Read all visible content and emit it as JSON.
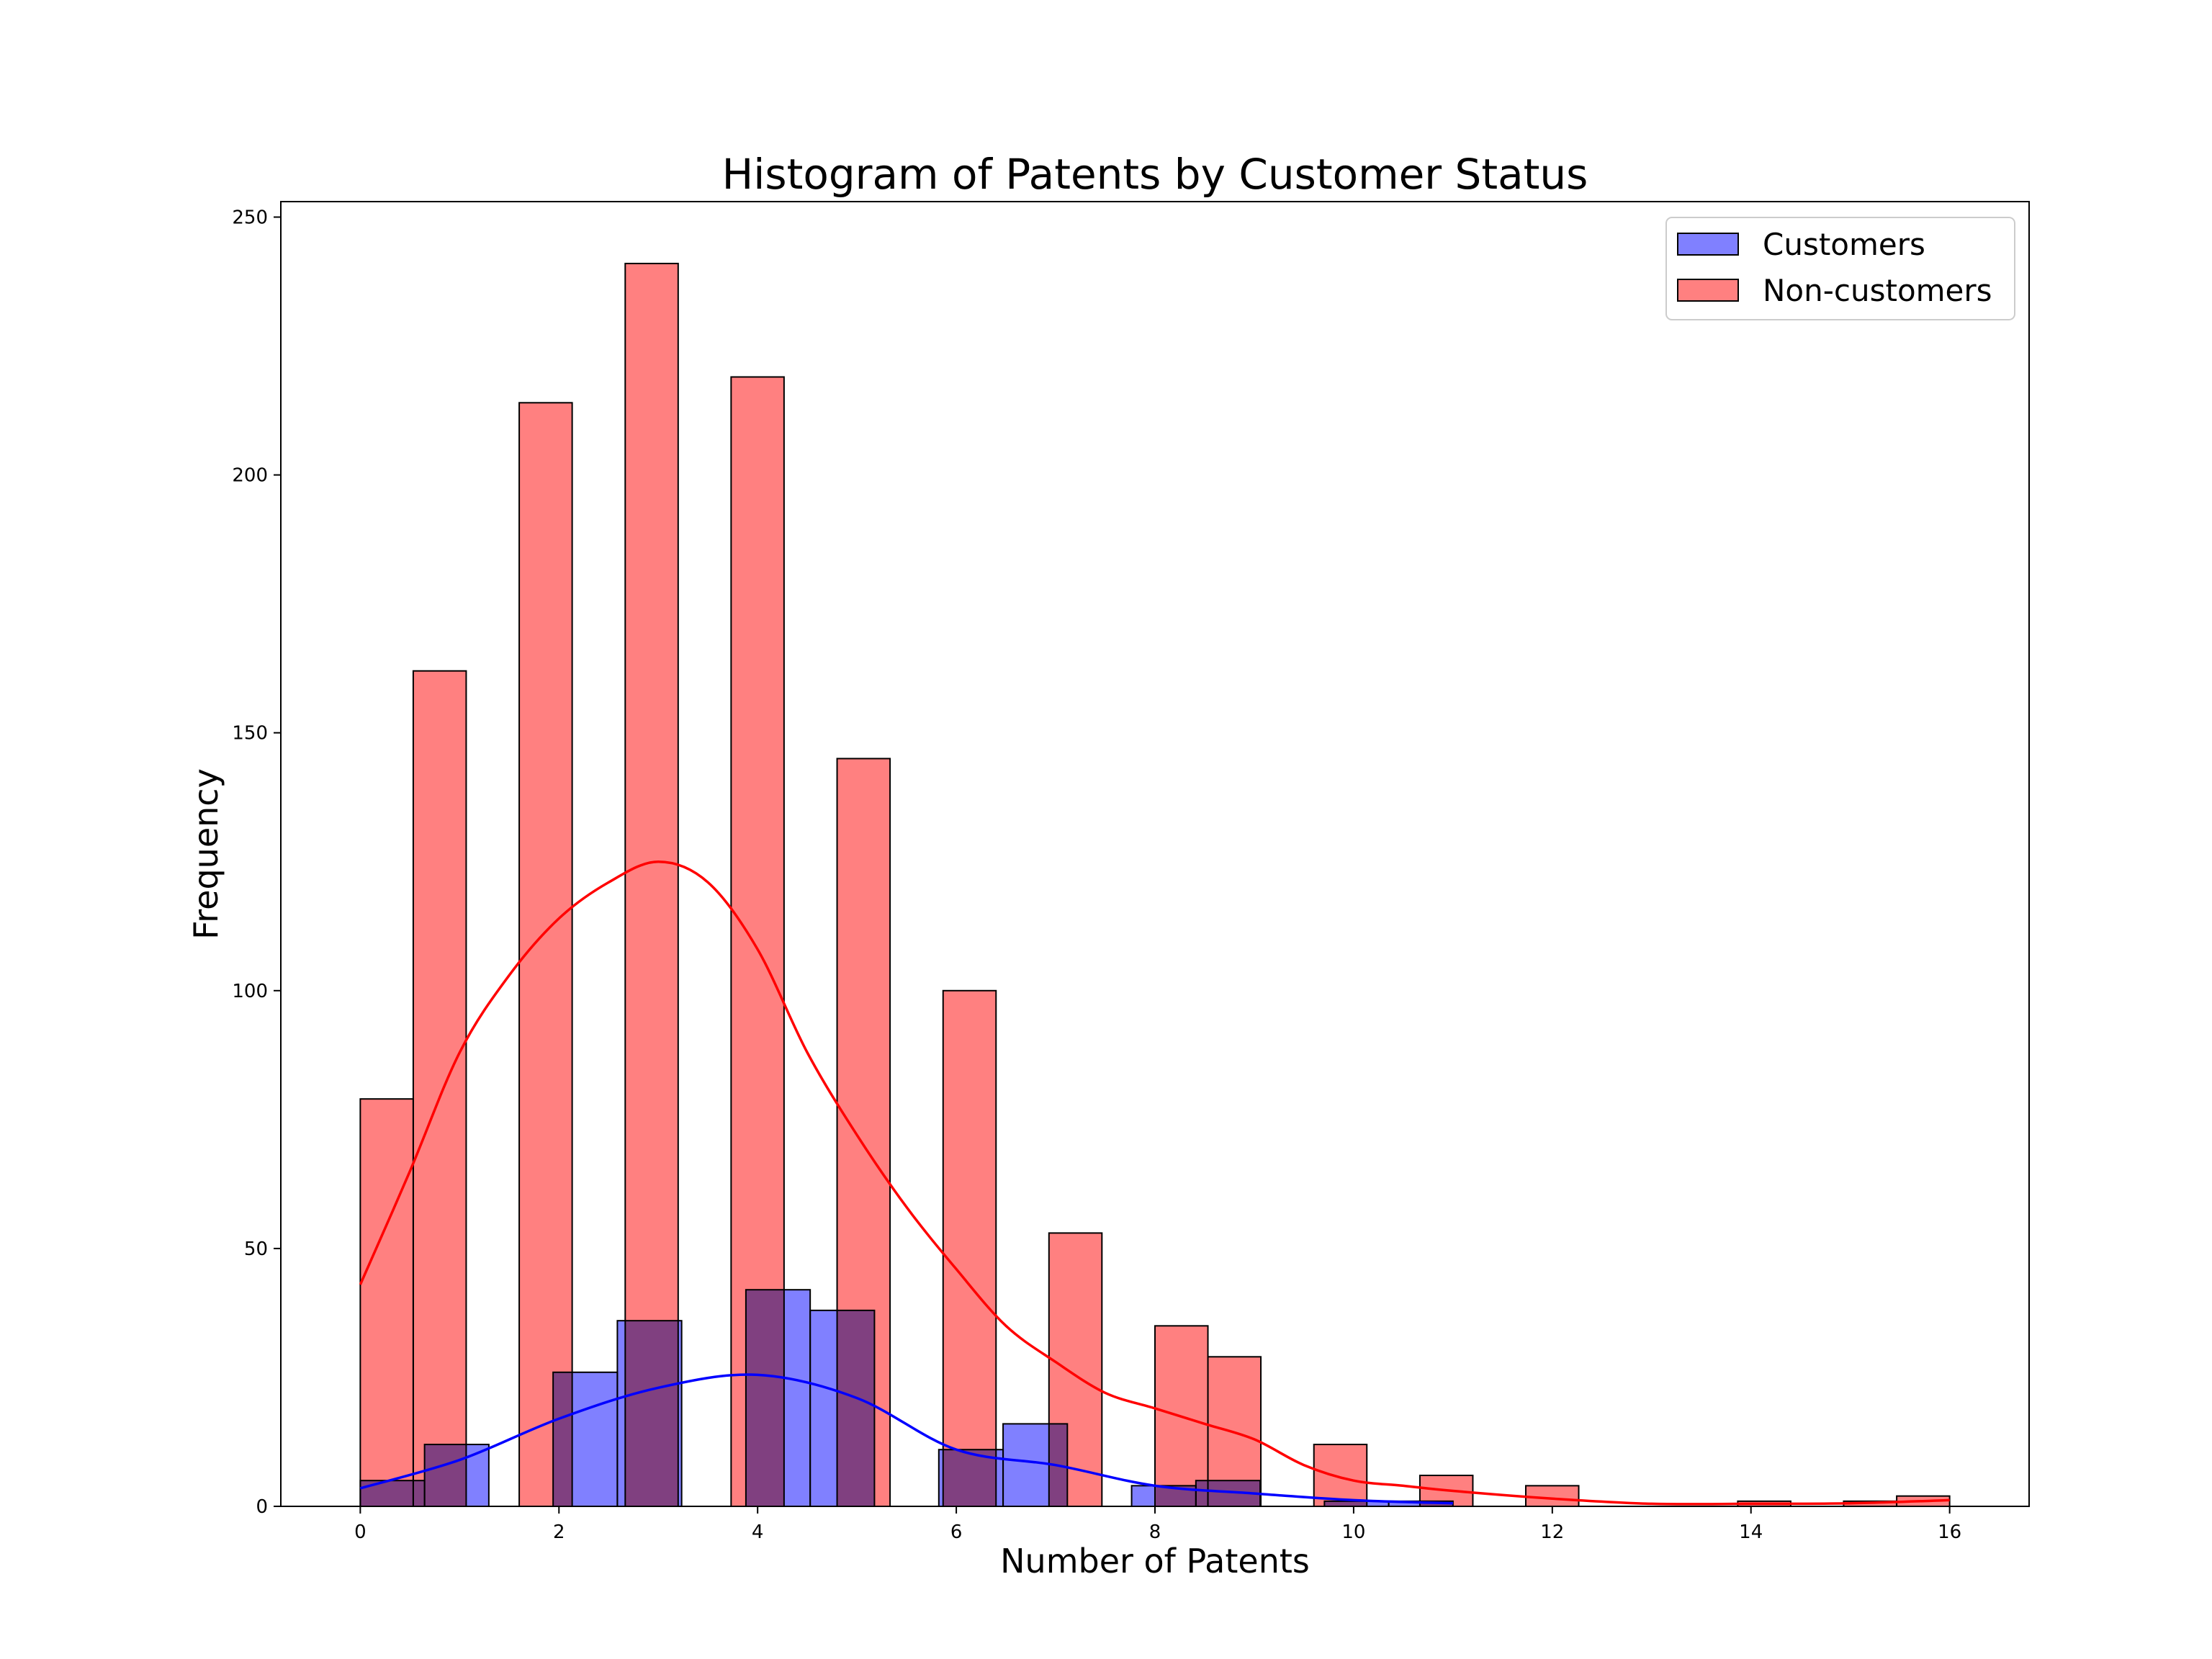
{
  "chart_data": {
    "type": "bar",
    "title": "Histogram of Patents by Customer Status",
    "xlabel": "Number of Patents",
    "ylabel": "Frequency",
    "xlim": [
      -0.8,
      16.8
    ],
    "ylim": [
      0,
      253
    ],
    "xticks": [
      0,
      2,
      4,
      6,
      8,
      10,
      12,
      14,
      16
    ],
    "yticks": [
      0,
      50,
      100,
      150,
      200,
      250
    ],
    "grid": false,
    "legend_position": "top-right",
    "series": [
      {
        "name": "Customers",
        "color": "#8080ff",
        "kde_color": "#0000ff",
        "bin_width": 0.647,
        "bins": [
          {
            "x0": 0.0,
            "value": 5
          },
          {
            "x0": 0.647,
            "value": 12
          },
          {
            "x0": 1.294,
            "value": 0
          },
          {
            "x0": 1.941,
            "value": 26
          },
          {
            "x0": 2.588,
            "value": 36
          },
          {
            "x0": 3.235,
            "value": 0
          },
          {
            "x0": 3.882,
            "value": 42
          },
          {
            "x0": 4.529,
            "value": 38
          },
          {
            "x0": 5.176,
            "value": 0
          },
          {
            "x0": 5.824,
            "value": 11
          },
          {
            "x0": 6.471,
            "value": 16
          },
          {
            "x0": 7.118,
            "value": 0
          },
          {
            "x0": 7.765,
            "value": 4
          },
          {
            "x0": 8.412,
            "value": 5
          },
          {
            "x0": 9.059,
            "value": 0
          },
          {
            "x0": 9.706,
            "value": 1
          },
          {
            "x0": 10.353,
            "value": 1
          }
        ],
        "kde": [
          [
            0,
            3.5
          ],
          [
            1,
            9
          ],
          [
            2,
            17
          ],
          [
            3,
            23
          ],
          [
            4,
            25.5
          ],
          [
            5,
            21
          ],
          [
            6,
            11
          ],
          [
            7,
            8
          ],
          [
            8,
            4
          ],
          [
            9,
            2.5
          ],
          [
            10,
            1.2
          ],
          [
            11,
            0.6
          ]
        ]
      },
      {
        "name": "Non-customers",
        "color": "#ff8080",
        "kde_color": "#ff0000",
        "bin_width": 0.533,
        "bins": [
          {
            "x0": 0.0,
            "value": 79
          },
          {
            "x0": 0.533,
            "value": 162
          },
          {
            "x0": 1.6,
            "value": 214
          },
          {
            "x0": 2.667,
            "value": 241
          },
          {
            "x0": 3.733,
            "value": 219
          },
          {
            "x0": 4.8,
            "value": 145
          },
          {
            "x0": 5.867,
            "value": 100
          },
          {
            "x0": 6.933,
            "value": 53
          },
          {
            "x0": 8.0,
            "value": 35
          },
          {
            "x0": 8.533,
            "value": 29
          },
          {
            "x0": 9.6,
            "value": 12
          },
          {
            "x0": 10.667,
            "value": 6
          },
          {
            "x0": 11.733,
            "value": 4
          },
          {
            "x0": 13.867,
            "value": 1
          },
          {
            "x0": 14.933,
            "value": 1
          },
          {
            "x0": 15.467,
            "value": 2
          }
        ],
        "kde": [
          [
            0,
            43
          ],
          [
            0.5,
            65
          ],
          [
            1,
            88
          ],
          [
            1.5,
            103
          ],
          [
            2,
            114
          ],
          [
            2.5,
            121
          ],
          [
            3,
            125
          ],
          [
            3.5,
            121
          ],
          [
            4,
            108
          ],
          [
            4.5,
            88
          ],
          [
            5,
            72
          ],
          [
            5.5,
            58
          ],
          [
            6,
            46
          ],
          [
            6.5,
            35
          ],
          [
            7,
            28
          ],
          [
            7.5,
            22
          ],
          [
            8,
            19
          ],
          [
            8.5,
            16
          ],
          [
            9,
            13
          ],
          [
            9.5,
            8
          ],
          [
            10,
            5
          ],
          [
            10.5,
            4
          ],
          [
            11,
            3
          ],
          [
            12,
            1.5
          ],
          [
            13,
            0.5
          ],
          [
            14,
            0.5
          ],
          [
            15,
            0.6
          ],
          [
            16,
            1.2
          ]
        ]
      }
    ]
  }
}
